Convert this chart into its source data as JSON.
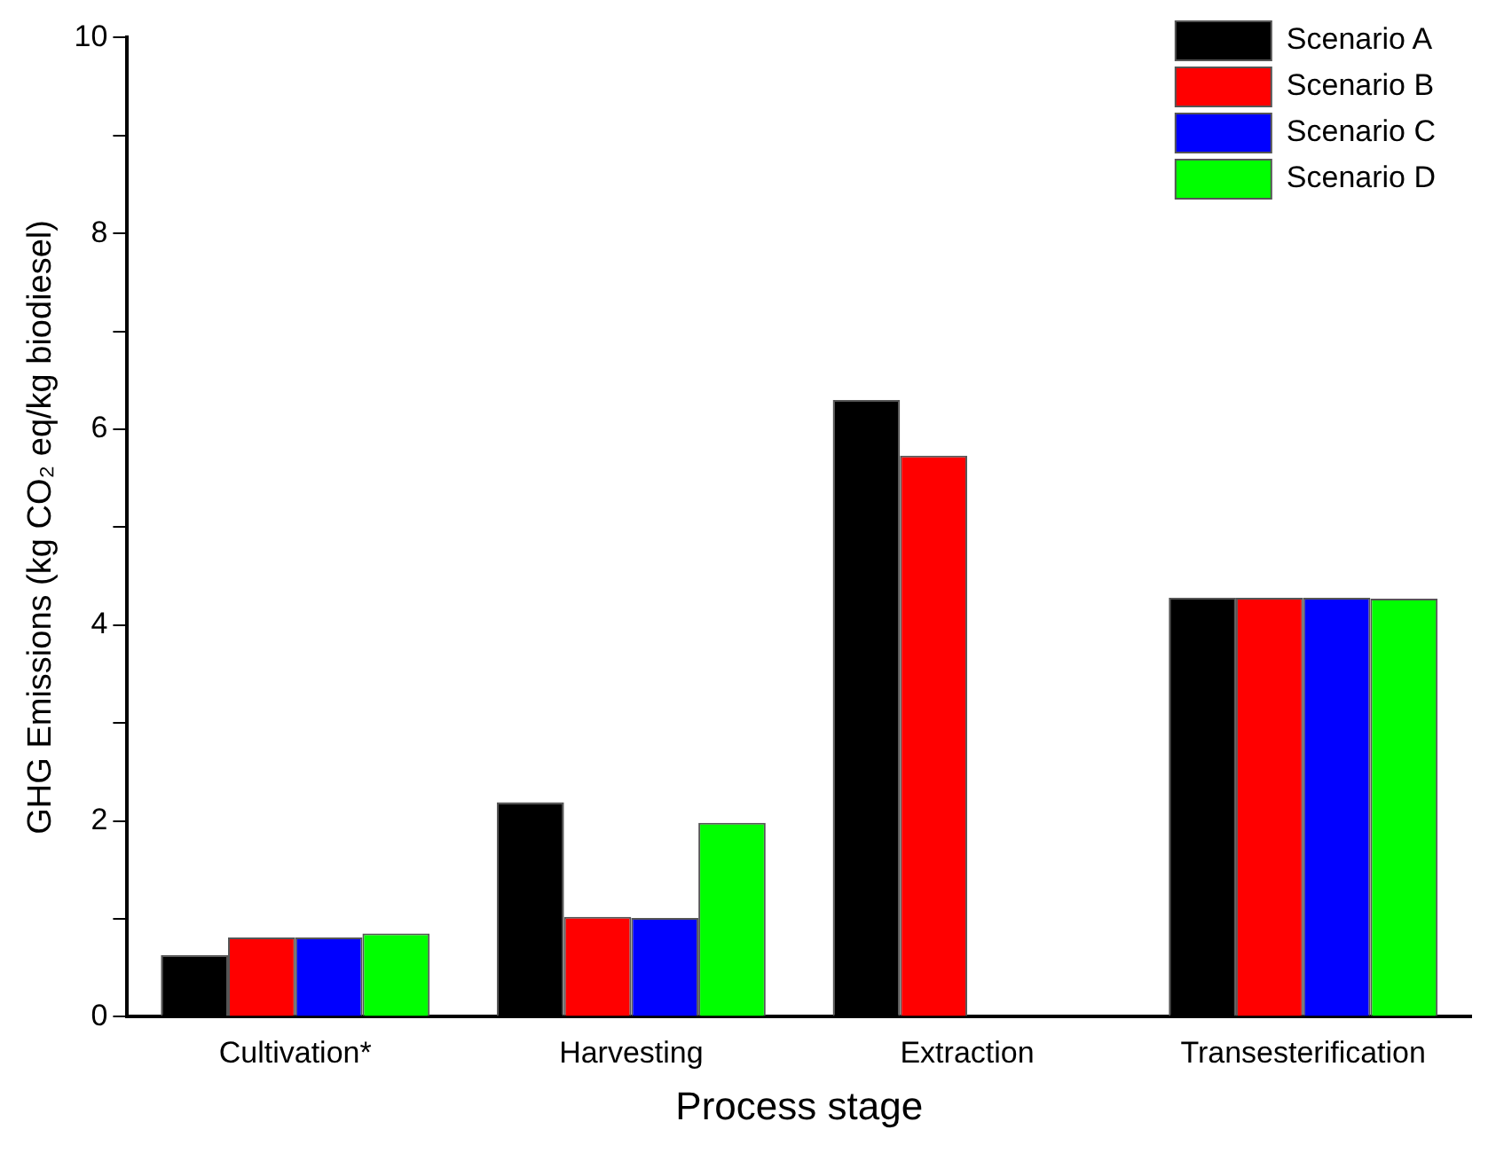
{
  "chart_data": {
    "type": "bar",
    "xlabel": "Process stage",
    "ylabel": "GHG Emissions (kg CO₂ eq/kg biodiesel)",
    "categories": [
      "Cultivation*",
      "Harvesting",
      "Extraction",
      "Transesterification"
    ],
    "series": [
      {
        "name": "Scenario A",
        "color": "#000000",
        "values": [
          0.63,
          2.19,
          6.3,
          4.28
        ]
      },
      {
        "name": "Scenario B",
        "color": "#ff0000",
        "values": [
          0.81,
          1.02,
          5.73,
          4.28
        ]
      },
      {
        "name": "Scenario C",
        "color": "#0000ff",
        "values": [
          0.81,
          1.01,
          null,
          4.28
        ]
      },
      {
        "name": "Scenario D",
        "color": "#00ff00",
        "values": [
          0.85,
          1.98,
          null,
          4.27
        ]
      }
    ],
    "ylim": [
      0,
      10
    ],
    "yticks": [
      0,
      {
        "value": 1,
        "label": null
      },
      2,
      {
        "value": 3,
        "label": null
      },
      4,
      {
        "value": 5,
        "label": null
      },
      6,
      {
        "value": 7,
        "label": null
      },
      8,
      {
        "value": 9,
        "label": null
      },
      10
    ],
    "grid": false,
    "legend": "top right"
  }
}
